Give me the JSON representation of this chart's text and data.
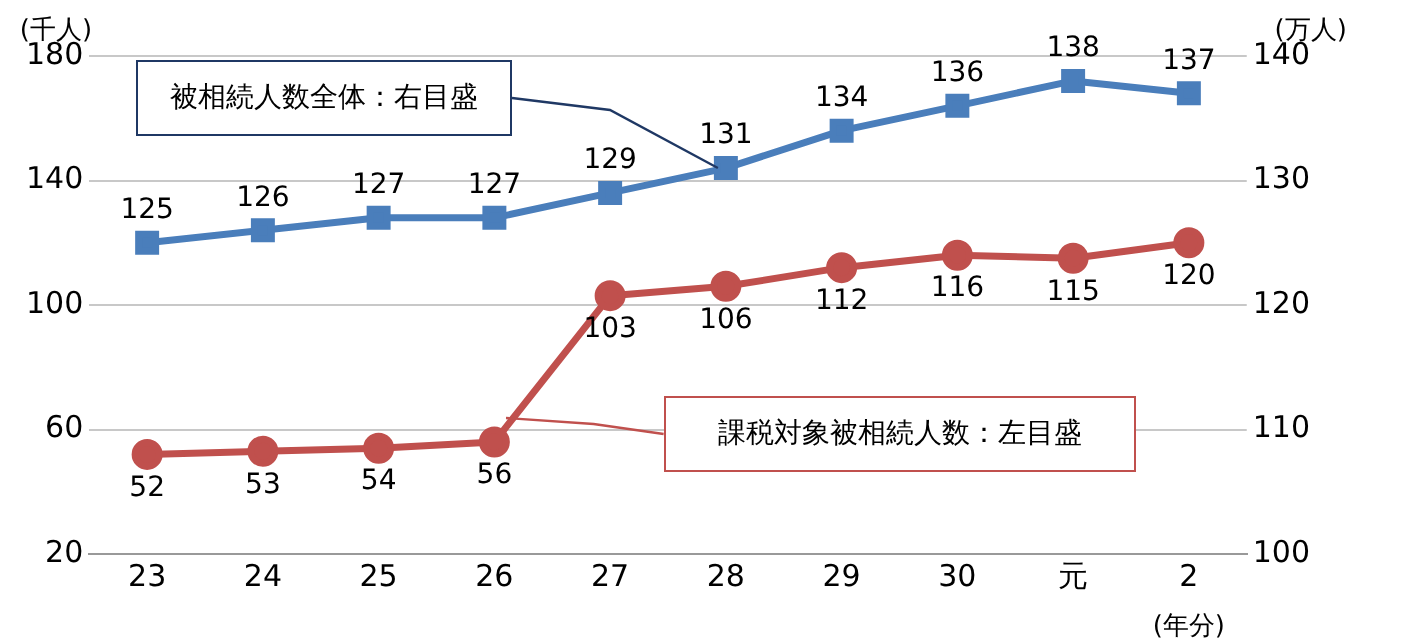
{
  "chart_data": {
    "type": "line",
    "categories": [
      "23",
      "24",
      "25",
      "26",
      "27",
      "28",
      "29",
      "30",
      "元",
      "2"
    ],
    "xlabel": "(年分)",
    "ylabel": "(千人)",
    "y2label": "(万人)",
    "ylim": [
      20,
      180
    ],
    "yticks": [
      20,
      60,
      100,
      140,
      180
    ],
    "y2lim": [
      100,
      140
    ],
    "y2ticks": [
      100,
      110,
      120,
      130,
      140
    ],
    "series": [
      {
        "color": "#4a7ebb",
        "axis": "y2",
        "marker": "square",
        "values": [
          125,
          126,
          127,
          127,
          129,
          131,
          134,
          136,
          138,
          137
        ]
      },
      {
        "color": "#c0504d",
        "axis": "y",
        "marker": "circle",
        "values": [
          52,
          53,
          54,
          56,
          103,
          106,
          112,
          116,
          115,
          120
        ]
      }
    ],
    "annotations": [
      {
        "text": "被相続人数全体：右目盛",
        "x": "28",
        "y": 144
      },
      "課税対象被相続人数：左目盛"
    ],
    "data_labels": true,
    "grid": "y",
    "legend": false
  }
}
